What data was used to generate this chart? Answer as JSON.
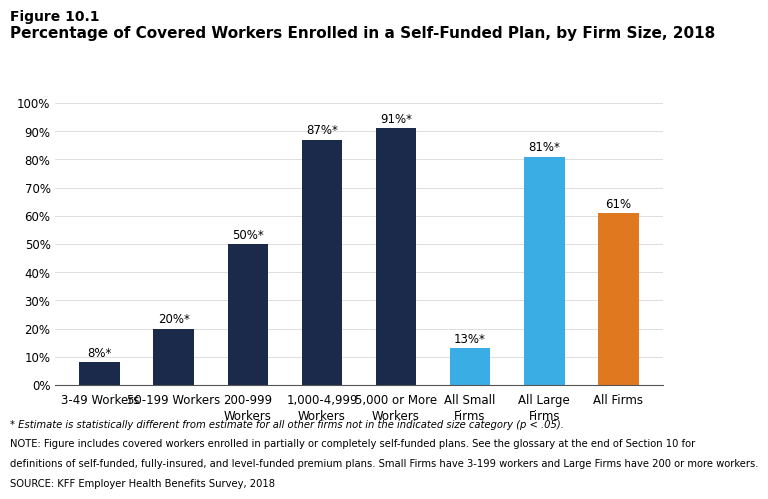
{
  "categories": [
    "3-49 Workers",
    "50-199 Workers",
    "200-999\nWorkers",
    "1,000-4,999\nWorkers",
    "5,000 or More\nWorkers",
    "All Small\nFirms",
    "All Large\nFirms",
    "All Firms"
  ],
  "values": [
    8,
    20,
    50,
    87,
    91,
    13,
    81,
    61
  ],
  "bar_colors": [
    "#1b2a4a",
    "#1b2a4a",
    "#1b2a4a",
    "#1b2a4a",
    "#1b2a4a",
    "#3aade4",
    "#3aade4",
    "#e07820"
  ],
  "labels": [
    "8%*",
    "20%*",
    "50%*",
    "87%*",
    "91%*",
    "13%*",
    "81%*",
    "61%"
  ],
  "title_line1": "Figure 10.1",
  "title_line2": "Percentage of Covered Workers Enrolled in a Self-Funded Plan, by Firm Size, 2018",
  "ylim": [
    0,
    108
  ],
  "yticks": [
    0,
    10,
    20,
    30,
    40,
    50,
    60,
    70,
    80,
    90,
    100
  ],
  "ytick_labels": [
    "0%",
    "10%",
    "20%",
    "30%",
    "40%",
    "50%",
    "60%",
    "70%",
    "80%",
    "90%",
    "100%"
  ],
  "footnote1": "* Estimate is statistically different from estimate for all other firms not in the indicated size category (p < .05).",
  "footnote2": "NOTE: Figure includes covered workers enrolled in partially or completely self-funded plans. See the glossary at the end of Section 10 for",
  "footnote3": "definitions of self-funded, fully-insured, and level-funded premium plans. Small Firms have 3-199 workers and Large Firms have 200 or more workers.",
  "footnote4": "SOURCE: KFF Employer Health Benefits Survey, 2018",
  "background_color": "#ffffff",
  "label_fontsize": 8.5,
  "title1_fontsize": 10,
  "title2_fontsize": 11,
  "tick_fontsize": 8.5,
  "footnote_fontsize": 7.2,
  "bar_width": 0.55
}
